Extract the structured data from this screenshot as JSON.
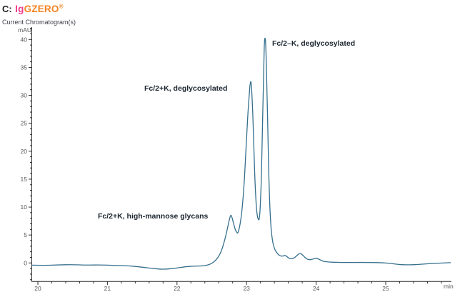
{
  "header": {
    "panel_label": "C:",
    "brand": {
      "part1": "Ig",
      "part2": "GZERO",
      "registered": "®",
      "part1_color": "#ee3f8e",
      "part2_color": "#f58220"
    },
    "subtitle": "Current Chromatogram(s)"
  },
  "chart_data": {
    "type": "line",
    "title": "Current Chromatogram(s)",
    "xlabel": "min",
    "ylabel": "mAU",
    "xlim": [
      19.9,
      25.95
    ],
    "ylim": [
      -3.3,
      42.2
    ],
    "x_major_ticks": [
      20,
      21,
      22,
      23,
      24,
      25
    ],
    "x_minor_step": 0.2,
    "y_major_ticks": [
      0,
      5,
      10,
      15,
      20,
      25,
      30,
      35,
      40
    ],
    "y_minor_step": 1,
    "grid": false,
    "legend_position": "none",
    "line_color": "#356f8d",
    "axis_color": "#2b2b2b",
    "tick_label_color": "#555555",
    "series": [
      {
        "name": "Current Chromatogram",
        "points": [
          [
            19.92,
            -0.4
          ],
          [
            20.1,
            -0.45
          ],
          [
            20.3,
            -0.35
          ],
          [
            20.5,
            -0.3
          ],
          [
            20.7,
            -0.4
          ],
          [
            20.9,
            -0.35
          ],
          [
            21.1,
            -0.45
          ],
          [
            21.3,
            -0.5
          ],
          [
            21.5,
            -0.75
          ],
          [
            21.65,
            -1.0
          ],
          [
            21.8,
            -1.15
          ],
          [
            21.95,
            -1.0
          ],
          [
            22.1,
            -0.7
          ],
          [
            22.25,
            -0.55
          ],
          [
            22.38,
            -0.55
          ],
          [
            22.48,
            -0.25
          ],
          [
            22.56,
            0.45
          ],
          [
            22.63,
            1.8
          ],
          [
            22.69,
            4.2
          ],
          [
            22.73,
            6.5
          ],
          [
            22.765,
            8.4
          ],
          [
            22.775,
            8.55
          ],
          [
            22.785,
            8.4
          ],
          [
            22.81,
            7.2
          ],
          [
            22.84,
            5.8
          ],
          [
            22.862,
            5.45
          ],
          [
            22.87,
            5.3
          ],
          [
            22.878,
            5.45
          ],
          [
            22.9,
            6.4
          ],
          [
            22.93,
            8.8
          ],
          [
            22.96,
            13
          ],
          [
            22.99,
            20
          ],
          [
            23.02,
            27
          ],
          [
            23.045,
            31.3
          ],
          [
            23.052,
            32.1
          ],
          [
            23.06,
            32.6
          ],
          [
            23.068,
            32.1
          ],
          [
            23.08,
            29.5
          ],
          [
            23.1,
            23
          ],
          [
            23.12,
            14.5
          ],
          [
            23.14,
            10
          ],
          [
            23.155,
            8.3
          ],
          [
            23.168,
            7.8
          ],
          [
            23.175,
            7.68
          ],
          [
            23.182,
            7.8
          ],
          [
            23.195,
            9.5
          ],
          [
            23.21,
            14
          ],
          [
            23.225,
            22
          ],
          [
            23.24,
            31
          ],
          [
            23.252,
            37.5
          ],
          [
            23.258,
            39.9
          ],
          [
            23.265,
            40.35
          ],
          [
            23.272,
            39.9
          ],
          [
            23.28,
            37.5
          ],
          [
            23.295,
            30
          ],
          [
            23.31,
            21
          ],
          [
            23.325,
            13
          ],
          [
            23.345,
            7.2
          ],
          [
            23.37,
            4.0
          ],
          [
            23.4,
            2.5
          ],
          [
            23.44,
            1.7
          ],
          [
            23.48,
            1.25
          ],
          [
            23.52,
            1.2
          ],
          [
            23.555,
            1.4
          ],
          [
            23.59,
            1.0
          ],
          [
            23.63,
            0.72
          ],
          [
            23.67,
            0.78
          ],
          [
            23.72,
            1.25
          ],
          [
            23.765,
            1.8
          ],
          [
            23.81,
            1.4
          ],
          [
            23.85,
            0.8
          ],
          [
            23.9,
            0.55
          ],
          [
            23.95,
            0.65
          ],
          [
            24.0,
            0.9
          ],
          [
            24.05,
            0.6
          ],
          [
            24.1,
            0.3
          ],
          [
            24.18,
            0.15
          ],
          [
            24.3,
            0.1
          ],
          [
            24.45,
            0.08
          ],
          [
            24.6,
            0.1
          ],
          [
            24.8,
            0.08
          ],
          [
            24.95,
            0.05
          ],
          [
            25.08,
            -0.1
          ],
          [
            25.2,
            -0.3
          ],
          [
            25.32,
            -0.35
          ],
          [
            25.45,
            -0.28
          ],
          [
            25.6,
            -0.15
          ],
          [
            25.75,
            -0.05
          ],
          [
            25.88,
            0.02
          ],
          [
            25.93,
            0.05
          ]
        ]
      }
    ],
    "annotations": [
      {
        "text": "Fc/2–K, deglycosylated",
        "peak_min": 23.27,
        "peak_mau": 40.3
      },
      {
        "text": "Fc/2+K, deglycosylated",
        "peak_min": 23.06,
        "peak_mau": 32.5
      },
      {
        "text": "Fc/2+K, high-mannose glycans",
        "peak_min": 22.77,
        "peak_mau": 8.5
      }
    ]
  }
}
